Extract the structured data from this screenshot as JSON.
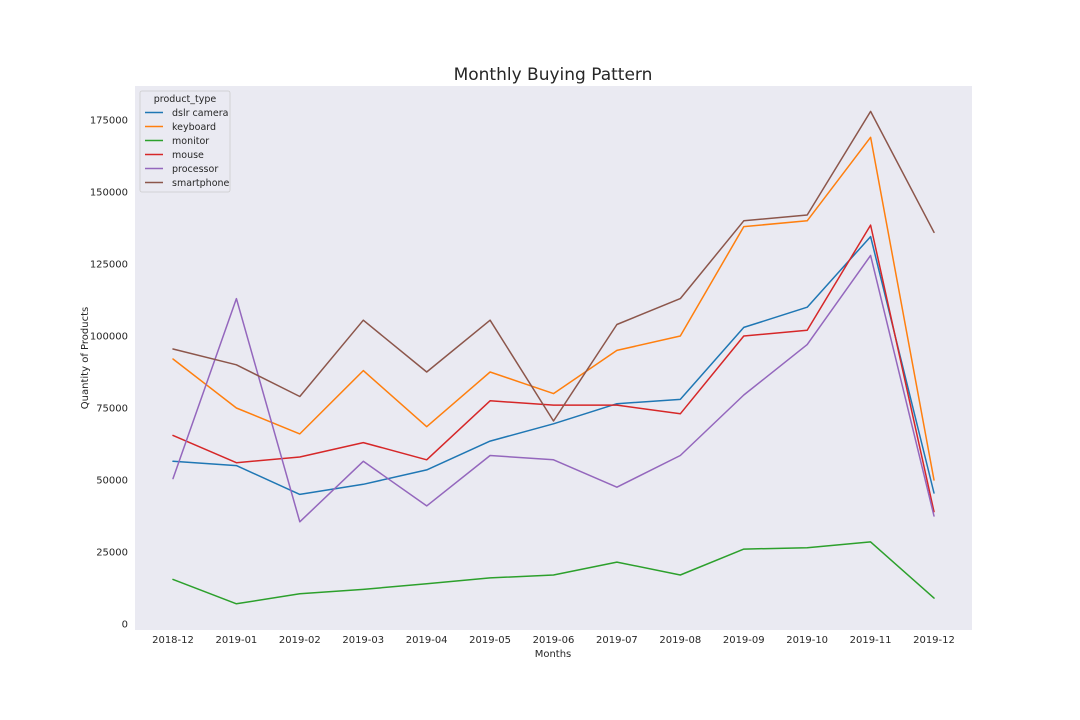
{
  "chart_data": {
    "type": "line",
    "title": "Monthly Buying Pattern",
    "xlabel": "Months",
    "ylabel": "Quantity of Products",
    "categories": [
      "2018-12",
      "2019-01",
      "2019-02",
      "2019-03",
      "2019-04",
      "2019-05",
      "2019-06",
      "2019-07",
      "2019-08",
      "2019-09",
      "2019-10",
      "2019-11",
      "2019-12"
    ],
    "ylim": [
      0,
      187500
    ],
    "yticks": [
      0,
      25000,
      50000,
      75000,
      100000,
      125000,
      150000,
      175000
    ],
    "grid": false,
    "background": "#eaeaf2",
    "legend": {
      "title": "product_type",
      "placement": "top-left"
    },
    "series": [
      {
        "name": "dslr camera",
        "color": "#1f77b4",
        "values": [
          56500,
          55000,
          45000,
          48500,
          53500,
          63500,
          69500,
          76500,
          78000,
          103000,
          110000,
          134500,
          45500
        ]
      },
      {
        "name": "keyboard",
        "color": "#ff7f0e",
        "values": [
          92000,
          75000,
          66000,
          88000,
          68500,
          87500,
          80000,
          95000,
          100000,
          138000,
          140000,
          169000,
          50000
        ]
      },
      {
        "name": "monitor",
        "color": "#2ca02c",
        "values": [
          15500,
          7000,
          10500,
          12000,
          14000,
          16000,
          17000,
          21500,
          17000,
          26000,
          26500,
          28500,
          9000
        ]
      },
      {
        "name": "mouse",
        "color": "#d62728",
        "values": [
          65500,
          56000,
          58000,
          63000,
          57000,
          77500,
          76000,
          76000,
          73000,
          100000,
          102000,
          138500,
          39000
        ]
      },
      {
        "name": "processor",
        "color": "#9467bd",
        "values": [
          50500,
          113000,
          35500,
          56500,
          41000,
          58500,
          57000,
          47500,
          58500,
          79500,
          97000,
          128000,
          37500
        ]
      },
      {
        "name": "smartphone",
        "color": "#8c564b",
        "values": [
          95500,
          90000,
          79000,
          105500,
          87500,
          105500,
          70500,
          104000,
          113000,
          140000,
          142000,
          178000,
          136000
        ]
      }
    ]
  }
}
